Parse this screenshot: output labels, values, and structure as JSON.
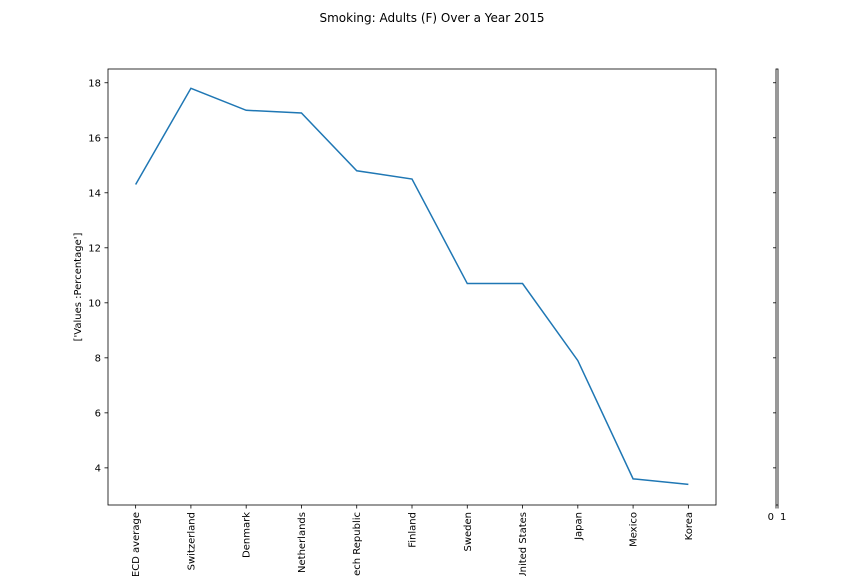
{
  "chart_data": {
    "type": "line",
    "title": "Smoking: Adults (F) Over a Year 2015",
    "xlabel": "",
    "ylabel": "['Values :Percentage']",
    "categories": [
      "OECD average",
      "Switzerland",
      "Denmark",
      "Netherlands",
      "Czech Republic",
      "Finland",
      "Sweden",
      "United States",
      "Japan",
      "Mexico",
      "Korea"
    ],
    "values": [
      14.3,
      17.8,
      17.0,
      16.9,
      14.8,
      14.5,
      10.7,
      10.7,
      7.9,
      3.6,
      3.4
    ],
    "ylim": [
      2.65,
      18.5
    ],
    "yticks": [
      4,
      6,
      8,
      10,
      12,
      14,
      16,
      18
    ],
    "grid": false,
    "line_color": "#1f77b4",
    "side_axis": {
      "xtick_labels": [
        "0",
        "1"
      ]
    }
  }
}
